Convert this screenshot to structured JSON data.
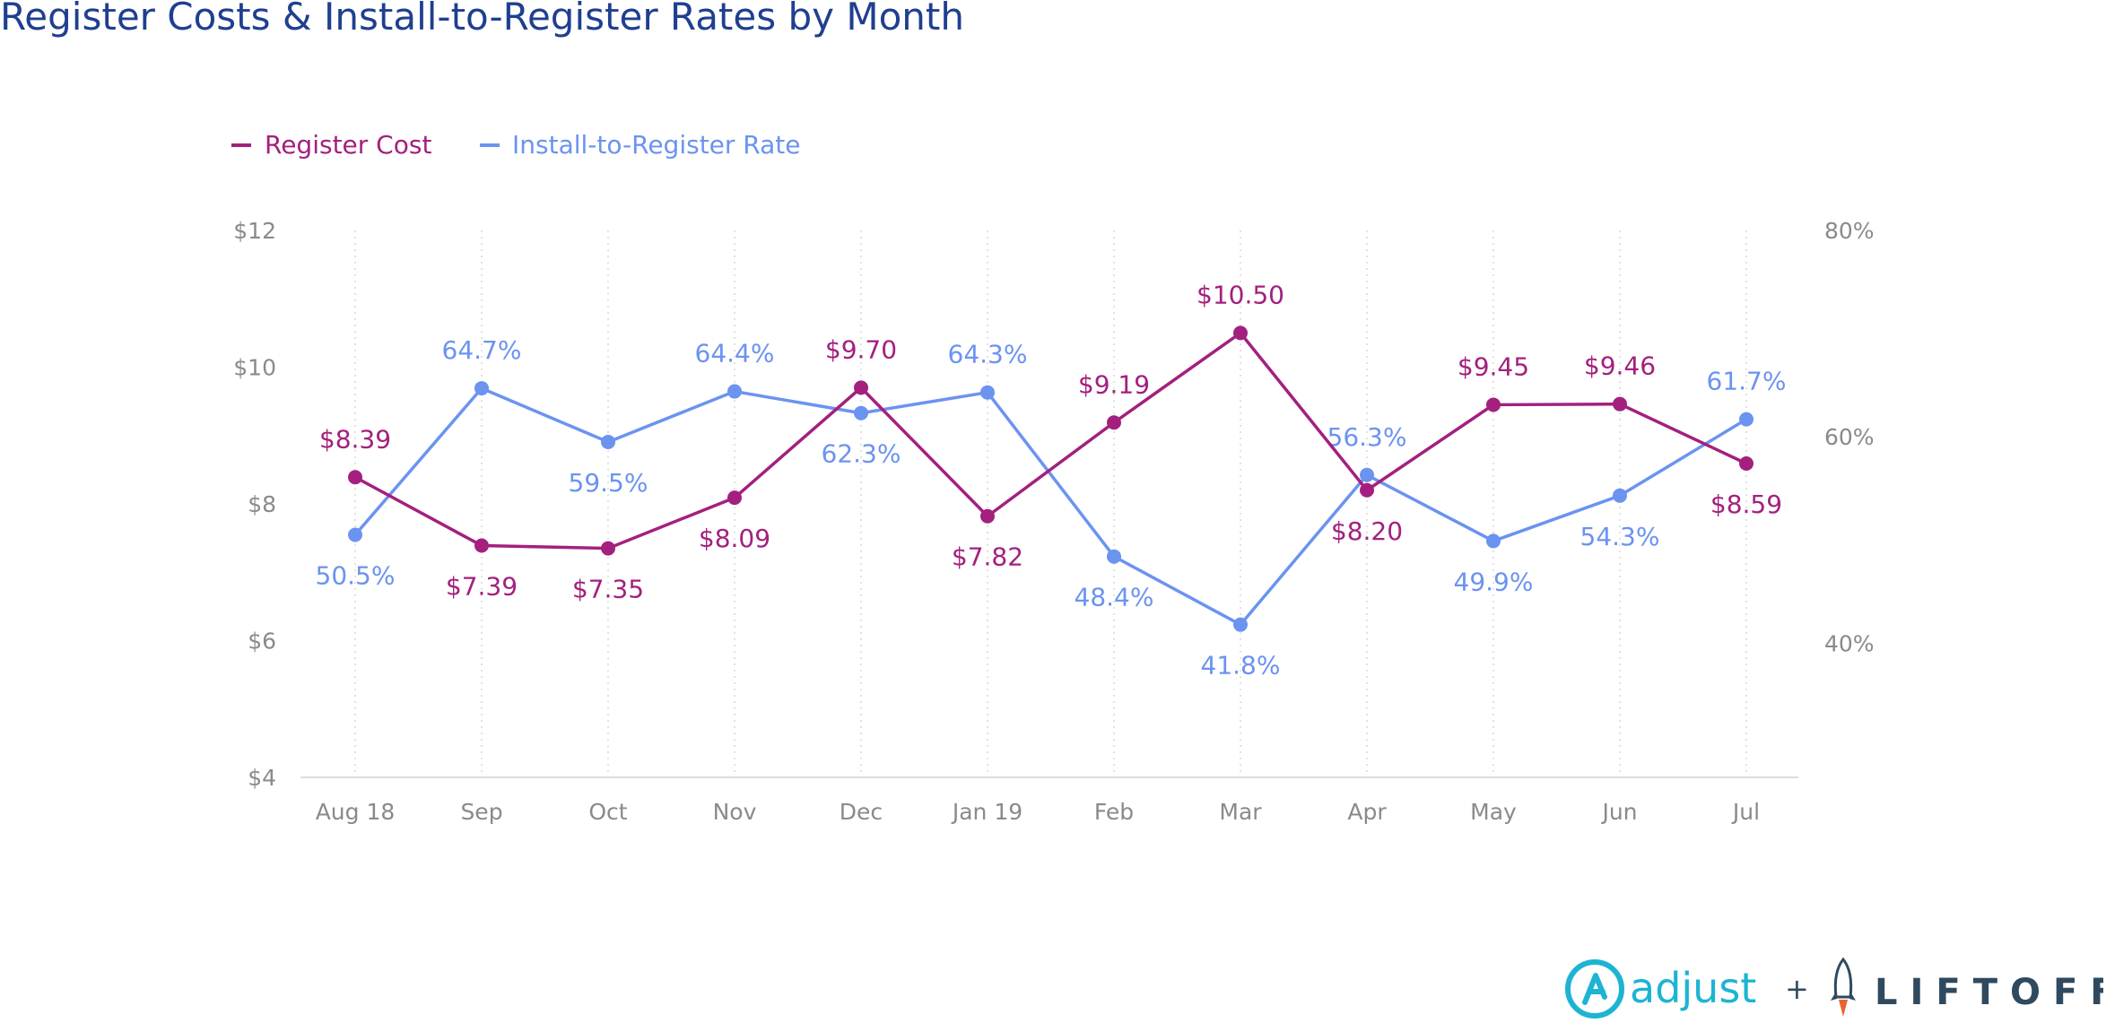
{
  "title": "Register Costs & Install-to-Register Rates by Month",
  "colors": {
    "cost": "#a3207e",
    "rate": "#6b93f0",
    "title": "#1f3f8f",
    "adjust": "#1db4d3",
    "liftoff": "#2f4a5e"
  },
  "chart_data": {
    "type": "line",
    "title": "Register Costs & Install-to-Register Rates by Month",
    "categories": [
      "Aug 18",
      "Sep",
      "Oct",
      "Nov",
      "Dec",
      "Jan 19",
      "Feb",
      "Mar",
      "Apr",
      "May",
      "Jun",
      "Jul"
    ],
    "series": [
      {
        "name": "Register Cost",
        "axis": "left",
        "values": [
          8.39,
          7.39,
          7.35,
          8.09,
          9.7,
          7.82,
          9.19,
          10.5,
          8.2,
          9.45,
          9.46,
          8.59
        ],
        "labels": [
          "$8.39",
          "$7.39",
          "$7.35",
          "$8.09",
          "$9.70",
          "$7.82",
          "$9.19",
          "$10.50",
          "$8.20",
          "$9.45",
          "$9.46",
          "$8.59"
        ]
      },
      {
        "name": "Install-to-Register Rate",
        "axis": "right",
        "values": [
          50.5,
          64.7,
          59.5,
          64.4,
          62.3,
          64.3,
          48.4,
          41.8,
          56.3,
          49.9,
          54.3,
          61.7
        ],
        "labels": [
          "50.5%",
          "64.7%",
          "59.5%",
          "64.4%",
          "62.3%",
          "64.3%",
          "48.4%",
          "41.8%",
          "56.3%",
          "49.9%",
          "54.3%",
          "61.7%"
        ]
      }
    ],
    "y_left": {
      "range": [
        4,
        12
      ],
      "ticks": [
        4,
        6,
        8,
        10,
        12
      ],
      "tick_labels": [
        "$4",
        "$6",
        "$8",
        "$10",
        "$12"
      ]
    },
    "y_right": {
      "range": [
        27,
        80
      ],
      "ticks": [
        40,
        60,
        80
      ],
      "tick_labels": [
        "40%",
        "60%",
        "80%"
      ]
    },
    "grid": "vertical dotted",
    "legend": "top-left"
  },
  "logos": {
    "adjust": "adjust",
    "plus": "+",
    "liftoff": "LIFTOFF"
  }
}
